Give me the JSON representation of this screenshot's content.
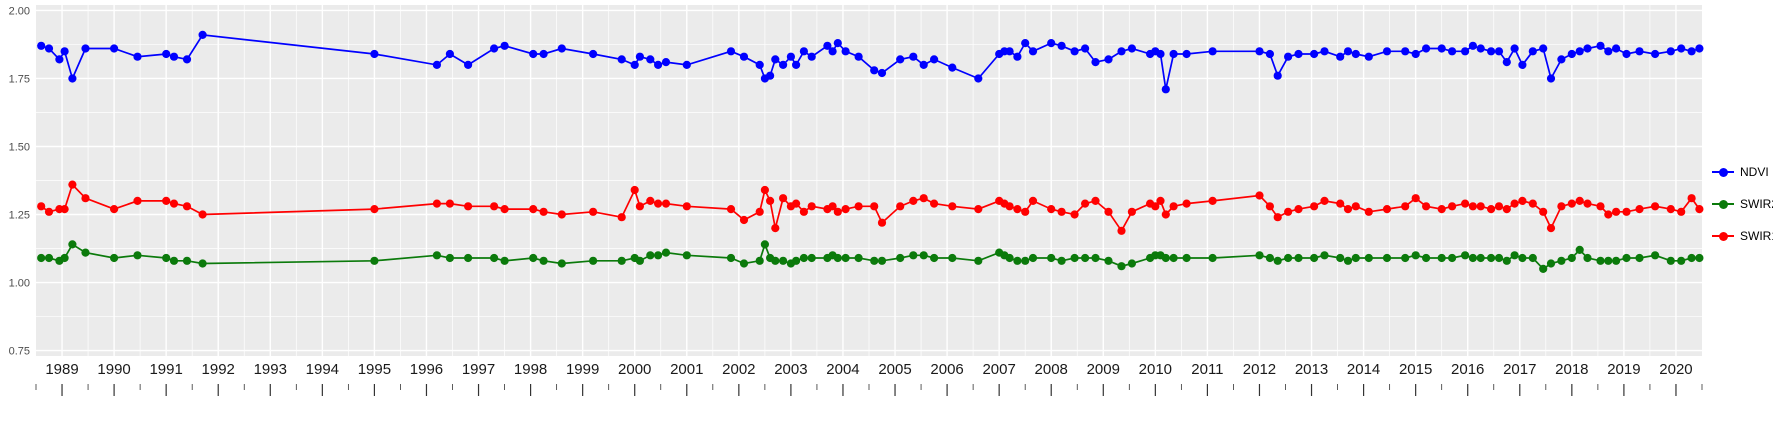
{
  "colors": {
    "panel_bg": "#EBEBEB",
    "grid": "#FFFFFF",
    "axis_text_x": "#1A1A1A",
    "axis_text_y": "#4D4D4D",
    "tick": "#333333"
  },
  "chart_data": {
    "type": "line",
    "title": "",
    "xlabel": "",
    "ylabel": "",
    "legend_position": "right",
    "grid": true,
    "x_axis": {
      "ticks": [
        1989,
        1990,
        1991,
        1992,
        1993,
        1994,
        1995,
        1996,
        1997,
        1998,
        1999,
        2000,
        2001,
        2002,
        2003,
        2004,
        2005,
        2006,
        2007,
        2008,
        2009,
        2010,
        2011,
        2012,
        2013,
        2014,
        2015,
        2016,
        2017,
        2018,
        2019,
        2020
      ],
      "range": [
        1988.5,
        2020.5
      ]
    },
    "y_axis": {
      "tick_values": [
        0.75,
        1.0,
        1.25,
        1.5,
        1.75,
        2.0
      ],
      "tick_labels": [
        "0.75",
        "1.00",
        "1.25",
        "1.50",
        "1.75",
        "2.00"
      ],
      "range": [
        0.73,
        2.02
      ]
    },
    "x": [
      1988.6,
      1988.75,
      1988.95,
      1989.05,
      1989.2,
      1989.45,
      1990.0,
      1990.45,
      1991.0,
      1991.15,
      1991.4,
      1991.7,
      1995.0,
      1996.2,
      1996.45,
      1996.8,
      1997.3,
      1997.5,
      1998.05,
      1998.25,
      1998.6,
      1999.2,
      1999.75,
      2000.0,
      2000.1,
      2000.3,
      2000.45,
      2000.6,
      2001.0,
      2001.85,
      2002.1,
      2002.4,
      2002.5,
      2002.6,
      2002.7,
      2002.85,
      2003.0,
      2003.1,
      2003.25,
      2003.4,
      2003.7,
      2003.8,
      2003.9,
      2004.05,
      2004.3,
      2004.6,
      2004.75,
      2005.1,
      2005.35,
      2005.55,
      2005.75,
      2006.1,
      2006.6,
      2007.0,
      2007.1,
      2007.2,
      2007.35,
      2007.5,
      2007.65,
      2008.0,
      2008.2,
      2008.45,
      2008.65,
      2008.85,
      2009.1,
      2009.35,
      2009.55,
      2009.9,
      2010.0,
      2010.1,
      2010.2,
      2010.35,
      2010.6,
      2011.1,
      2012.0,
      2012.2,
      2012.35,
      2012.55,
      2012.75,
      2013.05,
      2013.25,
      2013.55,
      2013.7,
      2013.85,
      2014.1,
      2014.45,
      2014.8,
      2015.0,
      2015.2,
      2015.5,
      2015.7,
      2015.95,
      2016.1,
      2016.25,
      2016.45,
      2016.6,
      2016.75,
      2016.9,
      2017.05,
      2017.25,
      2017.45,
      2017.6,
      2017.8,
      2018.0,
      2018.15,
      2018.3,
      2018.55,
      2018.7,
      2018.85,
      2019.05,
      2019.3,
      2019.6,
      2019.9,
      2020.1,
      2020.3,
      2020.45
    ],
    "series": [
      {
        "name": "NDVI",
        "color": "#0000FF",
        "values": [
          1.87,
          1.86,
          1.82,
          1.85,
          1.75,
          1.86,
          1.86,
          1.83,
          1.84,
          1.83,
          1.82,
          1.91,
          1.84,
          1.8,
          1.84,
          1.8,
          1.86,
          1.87,
          1.84,
          1.84,
          1.86,
          1.84,
          1.82,
          1.8,
          1.83,
          1.82,
          1.8,
          1.81,
          1.8,
          1.85,
          1.83,
          1.8,
          1.75,
          1.76,
          1.82,
          1.8,
          1.83,
          1.8,
          1.85,
          1.83,
          1.87,
          1.85,
          1.88,
          1.85,
          1.83,
          1.78,
          1.77,
          1.82,
          1.83,
          1.8,
          1.82,
          1.79,
          1.75,
          1.84,
          1.85,
          1.85,
          1.83,
          1.88,
          1.85,
          1.88,
          1.87,
          1.85,
          1.86,
          1.81,
          1.82,
          1.85,
          1.86,
          1.84,
          1.85,
          1.84,
          1.71,
          1.84,
          1.84,
          1.85,
          1.85,
          1.84,
          1.76,
          1.83,
          1.84,
          1.84,
          1.85,
          1.83,
          1.85,
          1.84,
          1.83,
          1.85,
          1.85,
          1.84,
          1.86,
          1.86,
          1.85,
          1.85,
          1.87,
          1.86,
          1.85,
          1.85,
          1.81,
          1.86,
          1.8,
          1.85,
          1.86,
          1.75,
          1.82,
          1.84,
          1.85,
          1.86,
          1.87,
          1.85,
          1.86,
          1.84,
          1.85,
          1.84,
          1.85,
          1.86,
          1.85,
          1.86
        ]
      },
      {
        "name": "SWIR2",
        "color": "#0B7A0B",
        "values": [
          1.09,
          1.09,
          1.08,
          1.09,
          1.14,
          1.11,
          1.09,
          1.1,
          1.09,
          1.08,
          1.08,
          1.07,
          1.08,
          1.1,
          1.09,
          1.09,
          1.09,
          1.08,
          1.09,
          1.08,
          1.07,
          1.08,
          1.08,
          1.09,
          1.08,
          1.1,
          1.1,
          1.11,
          1.1,
          1.09,
          1.07,
          1.08,
          1.14,
          1.09,
          1.08,
          1.08,
          1.07,
          1.08,
          1.09,
          1.09,
          1.09,
          1.1,
          1.09,
          1.09,
          1.09,
          1.08,
          1.08,
          1.09,
          1.1,
          1.1,
          1.09,
          1.09,
          1.08,
          1.11,
          1.1,
          1.09,
          1.08,
          1.08,
          1.09,
          1.09,
          1.08,
          1.09,
          1.09,
          1.09,
          1.08,
          1.06,
          1.07,
          1.09,
          1.1,
          1.1,
          1.09,
          1.09,
          1.09,
          1.09,
          1.1,
          1.09,
          1.08,
          1.09,
          1.09,
          1.09,
          1.1,
          1.09,
          1.08,
          1.09,
          1.09,
          1.09,
          1.09,
          1.1,
          1.09,
          1.09,
          1.09,
          1.1,
          1.09,
          1.09,
          1.09,
          1.09,
          1.08,
          1.1,
          1.09,
          1.09,
          1.05,
          1.07,
          1.08,
          1.09,
          1.12,
          1.09,
          1.08,
          1.08,
          1.08,
          1.09,
          1.09,
          1.1,
          1.08,
          1.08,
          1.09,
          1.09
        ]
      },
      {
        "name": "SWIR1",
        "color": "#FF0000",
        "values": [
          1.28,
          1.26,
          1.27,
          1.27,
          1.36,
          1.31,
          1.27,
          1.3,
          1.3,
          1.29,
          1.28,
          1.25,
          1.27,
          1.29,
          1.29,
          1.28,
          1.28,
          1.27,
          1.27,
          1.26,
          1.25,
          1.26,
          1.24,
          1.34,
          1.28,
          1.3,
          1.29,
          1.29,
          1.28,
          1.27,
          1.23,
          1.26,
          1.34,
          1.3,
          1.2,
          1.31,
          1.28,
          1.29,
          1.26,
          1.28,
          1.27,
          1.28,
          1.26,
          1.27,
          1.28,
          1.28,
          1.22,
          1.28,
          1.3,
          1.31,
          1.29,
          1.28,
          1.27,
          1.3,
          1.29,
          1.28,
          1.27,
          1.26,
          1.3,
          1.27,
          1.26,
          1.25,
          1.29,
          1.3,
          1.26,
          1.19,
          1.26,
          1.29,
          1.28,
          1.3,
          1.25,
          1.28,
          1.29,
          1.3,
          1.32,
          1.28,
          1.24,
          1.26,
          1.27,
          1.28,
          1.3,
          1.29,
          1.27,
          1.28,
          1.26,
          1.27,
          1.28,
          1.31,
          1.28,
          1.27,
          1.28,
          1.29,
          1.28,
          1.28,
          1.27,
          1.28,
          1.27,
          1.29,
          1.3,
          1.29,
          1.26,
          1.2,
          1.28,
          1.29,
          1.3,
          1.29,
          1.28,
          1.25,
          1.26,
          1.26,
          1.27,
          1.28,
          1.27,
          1.26,
          1.31,
          1.27
        ]
      }
    ]
  }
}
